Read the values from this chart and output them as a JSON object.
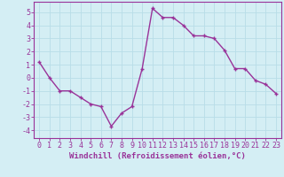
{
  "x": [
    0,
    1,
    2,
    3,
    4,
    5,
    6,
    7,
    8,
    9,
    10,
    11,
    12,
    13,
    14,
    15,
    16,
    17,
    18,
    19,
    20,
    21,
    22,
    23
  ],
  "y": [
    1.2,
    0.0,
    -1.0,
    -1.0,
    -1.5,
    -2.0,
    -2.2,
    -3.7,
    -2.7,
    -2.2,
    0.7,
    5.3,
    4.6,
    4.6,
    4.0,
    3.2,
    3.2,
    3.0,
    2.1,
    0.7,
    0.7,
    -0.2,
    -0.5,
    -1.2
  ],
  "line_color": "#993399",
  "marker_color": "#993399",
  "bg_color": "#d4eef4",
  "grid_color": "#b8dde8",
  "xlabel": "Windchill (Refroidissement éolien,°C)",
  "xticks": [
    0,
    1,
    2,
    3,
    4,
    5,
    6,
    7,
    8,
    9,
    10,
    11,
    12,
    13,
    14,
    15,
    16,
    17,
    18,
    19,
    20,
    21,
    22,
    23
  ],
  "yticks": [
    -4,
    -3,
    -2,
    -1,
    0,
    1,
    2,
    3,
    4,
    5
  ],
  "ylim": [
    -4.6,
    5.8
  ],
  "xlim": [
    -0.5,
    23.5
  ],
  "xlabel_fontsize": 6.5,
  "tick_fontsize": 6.0,
  "line_width": 1.0,
  "marker_size": 3.0,
  "axis_color": "#993399"
}
